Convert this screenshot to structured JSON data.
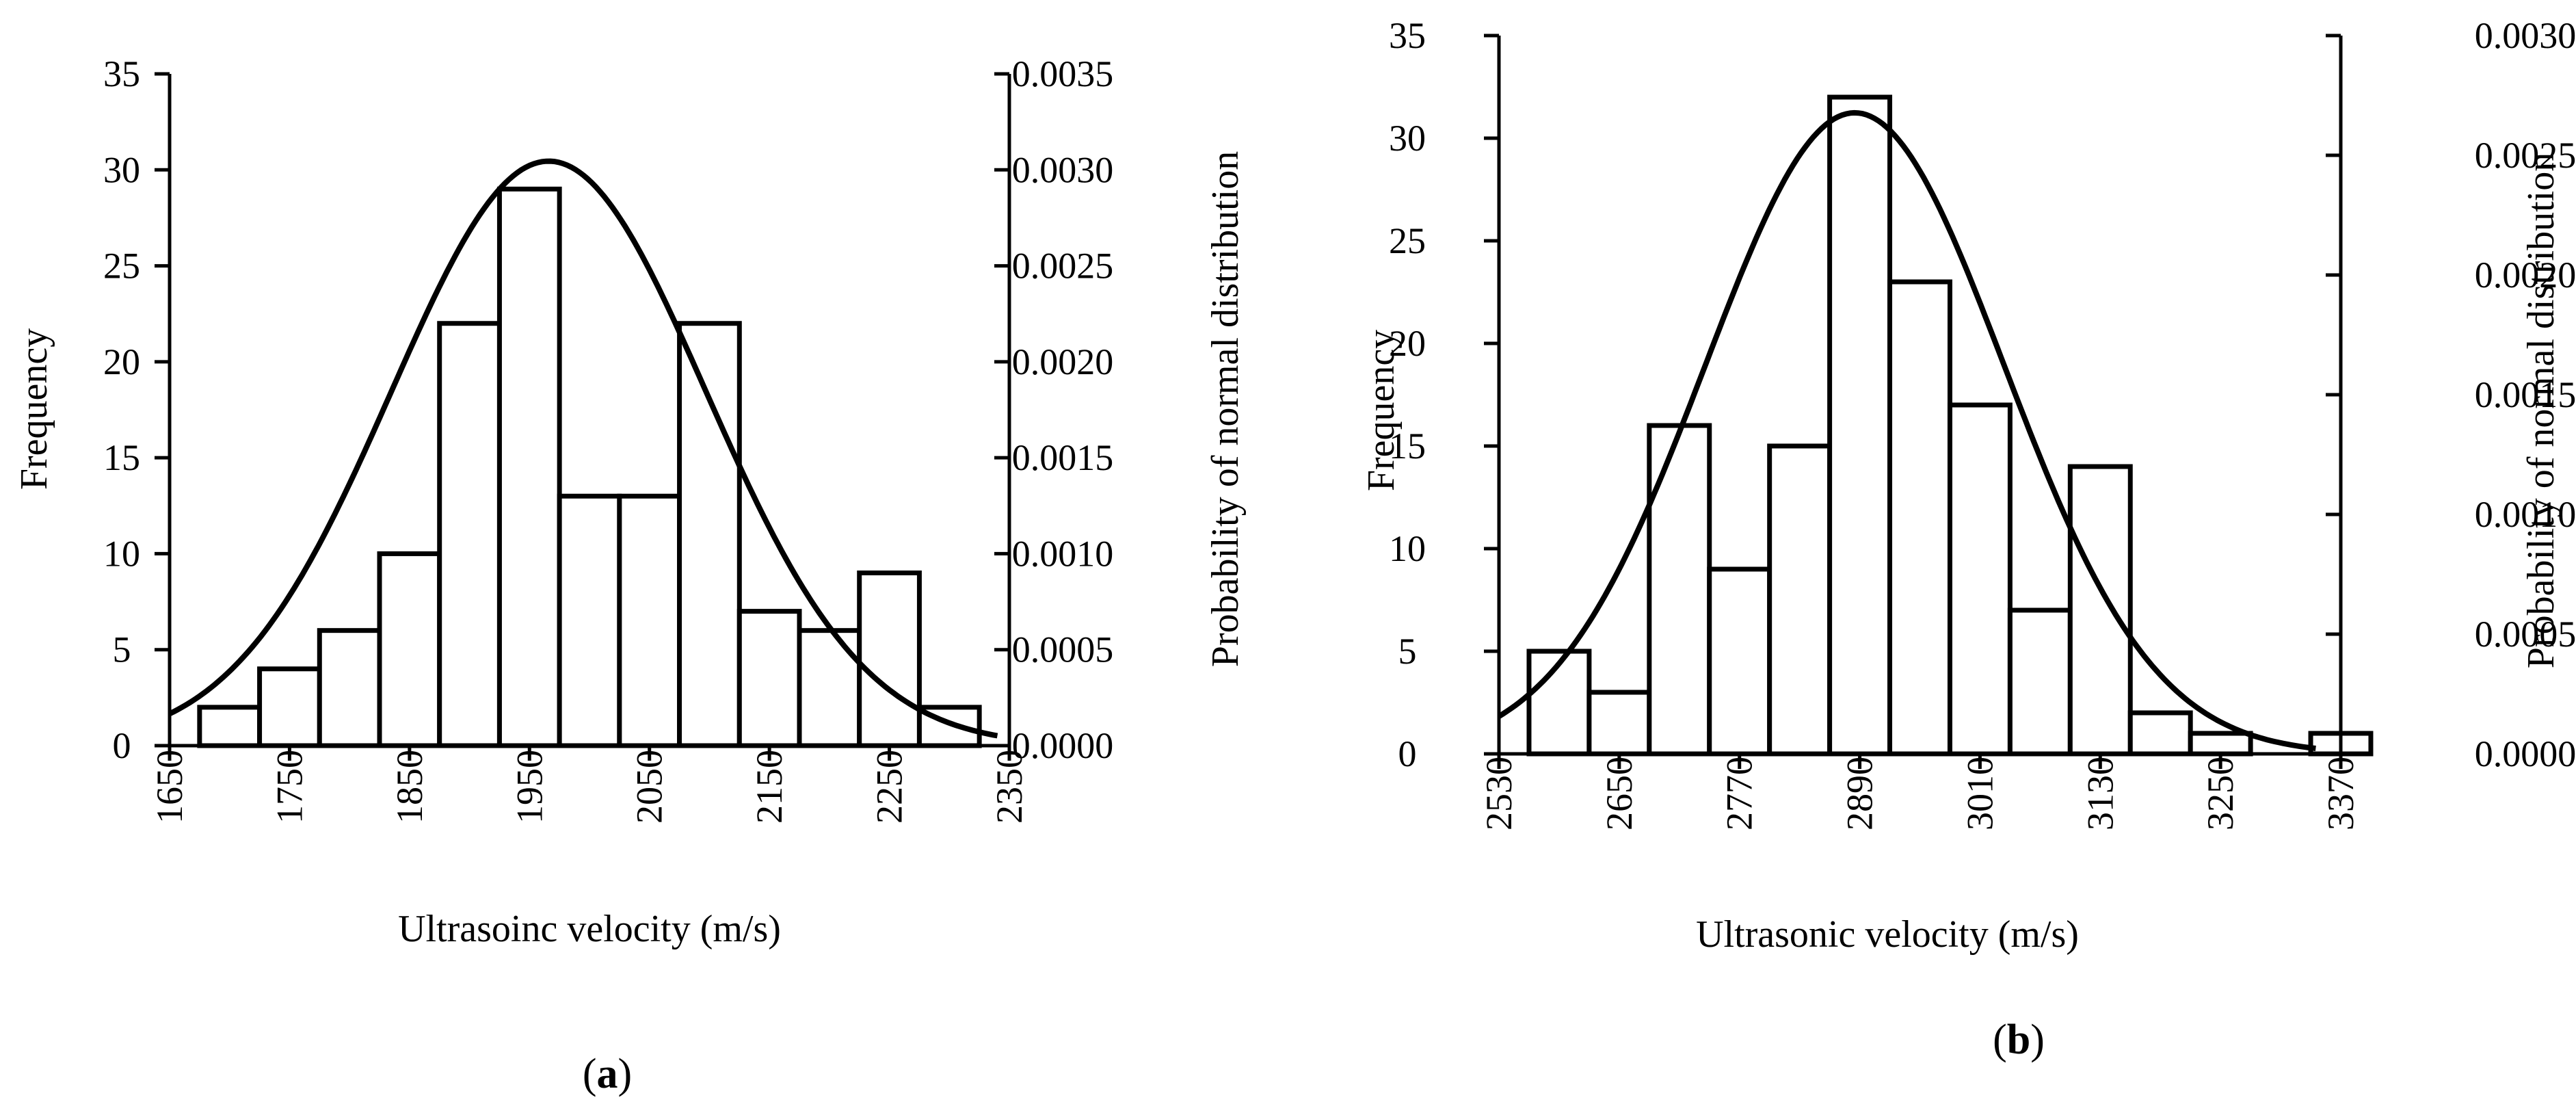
{
  "chart_data": [
    {
      "type": "bar",
      "panel_label": "a",
      "xlabel": "Ultrasoinc velocity (m/s)",
      "ylabel": "Frequency",
      "y2label": "Probability of normal distribution",
      "xlim": [
        1650,
        2350
      ],
      "xticks": [
        "1650",
        "1750",
        "1850",
        "1950",
        "2050",
        "2150",
        "2250",
        "2350"
      ],
      "ylim": [
        0,
        35
      ],
      "yticks": [
        "0",
        "5",
        "10",
        "15",
        "20",
        "25",
        "30",
        "35"
      ],
      "y2lim": [
        0,
        0.0035
      ],
      "y2ticks": [
        "0.0000",
        "0.0005",
        "0.0010",
        "0.0015",
        "0.0020",
        "0.0025",
        "0.0030",
        "0.0035"
      ],
      "bin_start": 1675,
      "bin_width": 50,
      "values": [
        2,
        4,
        6,
        10,
        22,
        29,
        13,
        13,
        22,
        7,
        6,
        9,
        2
      ],
      "normal_curve": {
        "mean": 1966,
        "sd": 131,
        "x_start": 1650,
        "x_end": 2340
      }
    },
    {
      "type": "bar",
      "panel_label": "b",
      "xlabel": "Ultrasonic velocity (m/s)",
      "ylabel": "Frequency",
      "y2label": "Probability of normal distribution",
      "xlim": [
        2530,
        3370
      ],
      "xticks": [
        "2530",
        "2650",
        "2770",
        "2890",
        "3010",
        "3130",
        "3250",
        "3370"
      ],
      "ylim": [
        0,
        35
      ],
      "yticks": [
        "0",
        "5",
        "10",
        "15",
        "20",
        "25",
        "30",
        "35"
      ],
      "y2lim": [
        0,
        0.003
      ],
      "y2ticks": [
        "0.0000",
        "0.0005",
        "0.0010",
        "0.0015",
        "0.0020",
        "0.0025",
        "0.0030"
      ],
      "bin_start": 2560,
      "bin_width": 60,
      "values": [
        5,
        3,
        16,
        9,
        15,
        32,
        23,
        17,
        7,
        14,
        2,
        1,
        0,
        1
      ],
      "normal_curve": {
        "mean": 2885,
        "sd": 149,
        "x_start": 2530,
        "x_end": 3345
      }
    }
  ]
}
